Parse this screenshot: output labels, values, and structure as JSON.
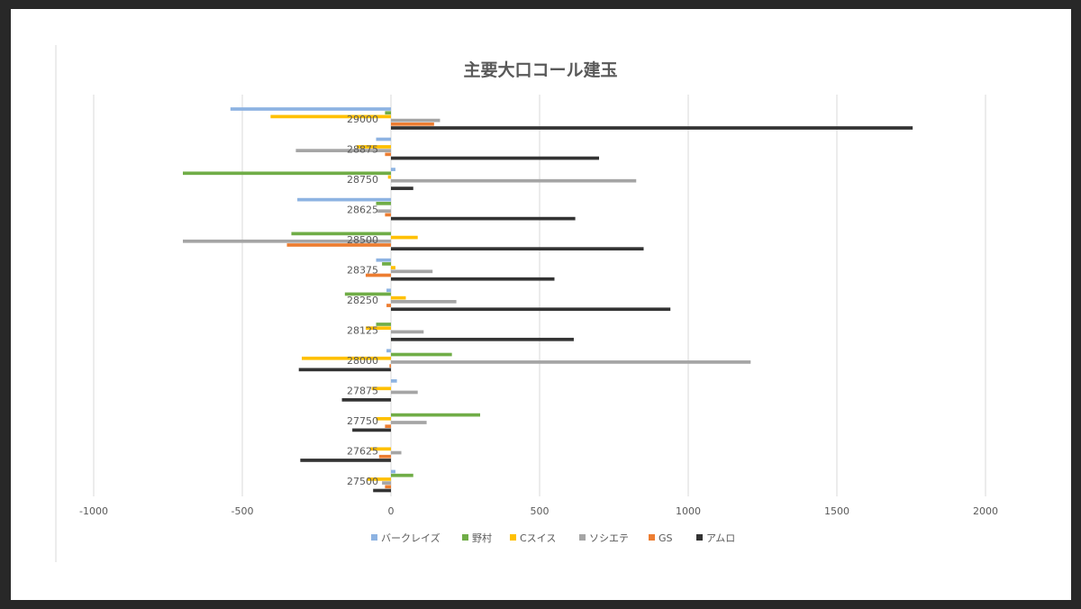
{
  "chart_data": {
    "type": "bar",
    "orientation": "horizontal",
    "title": "主要大口コール建玉",
    "xlim": [
      -1000,
      2000
    ],
    "x_ticks": [
      "-1000",
      "-500",
      "0",
      "500",
      "1000",
      "1500",
      "2000"
    ],
    "x_tick_values": [
      -1000,
      -500,
      0,
      500,
      1000,
      1500,
      2000
    ],
    "grid": true,
    "legend_position": "bottom",
    "categories": [
      "29000",
      "28875",
      "28750",
      "28625",
      "28500",
      "28375",
      "28250",
      "28125",
      "28000",
      "27875",
      "27750",
      "27625",
      "27500"
    ],
    "series": [
      {
        "name": "バークレイズ",
        "color": "#8db3e2",
        "values": [
          -540,
          -50,
          15,
          -315,
          0,
          -50,
          -15,
          0,
          -15,
          20,
          0,
          0,
          15
        ]
      },
      {
        "name": "野村",
        "color": "#70ad47",
        "values": [
          -20,
          0,
          -700,
          -50,
          -335,
          -30,
          -155,
          -50,
          205,
          0,
          300,
          0,
          75
        ]
      },
      {
        "name": "Cスイス",
        "color": "#ffc000",
        "values": [
          -405,
          -115,
          -10,
          0,
          90,
          15,
          50,
          -85,
          -300,
          -65,
          -50,
          -70,
          -80
        ]
      },
      {
        "name": "ソシエテ",
        "color": "#a5a5a5",
        "values": [
          165,
          -320,
          825,
          -45,
          -700,
          140,
          220,
          110,
          1210,
          90,
          120,
          35,
          -30
        ]
      },
      {
        "name": "GS",
        "color": "#ed7d31",
        "values": [
          145,
          -20,
          0,
          -20,
          -350,
          -85,
          -15,
          0,
          -5,
          0,
          -20,
          -40,
          -20
        ]
      },
      {
        "name": "アムロ",
        "color": "#333333",
        "values": [
          1755,
          700,
          75,
          620,
          850,
          550,
          940,
          615,
          -310,
          -165,
          -130,
          -305,
          -60
        ]
      }
    ]
  }
}
